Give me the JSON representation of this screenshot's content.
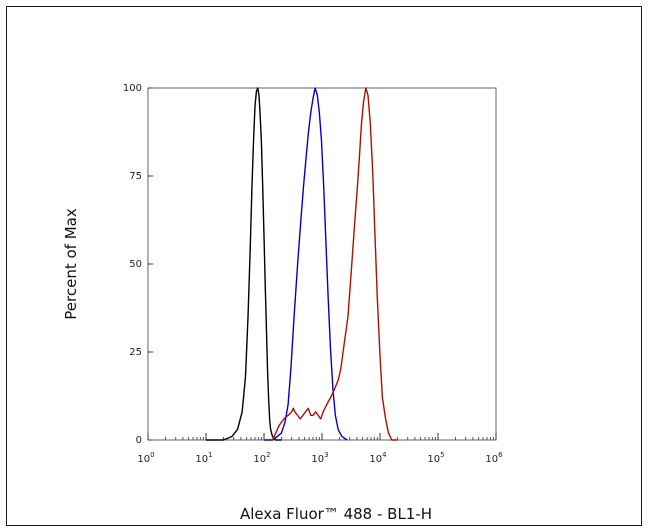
{
  "chart_data": {
    "type": "line",
    "title": "",
    "xlabel": "Alexa Fluor™ 488 - BL1-H",
    "ylabel": "Percent of Max",
    "x_scale": "log",
    "xlim": [
      1,
      1000000
    ],
    "ylim": [
      0,
      100
    ],
    "x_ticks": [
      {
        "value": 1,
        "base": "10",
        "exp": "0"
      },
      {
        "value": 10,
        "base": "10",
        "exp": "1"
      },
      {
        "value": 100,
        "base": "10",
        "exp": "2"
      },
      {
        "value": 1000,
        "base": "10",
        "exp": "3"
      },
      {
        "value": 10000,
        "base": "10",
        "exp": "4"
      },
      {
        "value": 100000,
        "base": "10",
        "exp": "5"
      },
      {
        "value": 1000000,
        "base": "10",
        "exp": "6"
      }
    ],
    "y_ticks": [
      0,
      25,
      50,
      75,
      100
    ],
    "grid": false,
    "legend": "none",
    "series": [
      {
        "color": "#000000",
        "points": [
          [
            10,
            0
          ],
          [
            20,
            0
          ],
          [
            28,
            1
          ],
          [
            35,
            3
          ],
          [
            42,
            8
          ],
          [
            48,
            18
          ],
          [
            53,
            35
          ],
          [
            58,
            55
          ],
          [
            62,
            72
          ],
          [
            66,
            85
          ],
          [
            70,
            95
          ],
          [
            74,
            99
          ],
          [
            78,
            100
          ],
          [
            82,
            98
          ],
          [
            86,
            92
          ],
          [
            90,
            85
          ],
          [
            95,
            72
          ],
          [
            100,
            58
          ],
          [
            105,
            44
          ],
          [
            110,
            32
          ],
          [
            115,
            20
          ],
          [
            120,
            12
          ],
          [
            125,
            6
          ],
          [
            130,
            3
          ],
          [
            140,
            1
          ],
          [
            160,
            0
          ],
          [
            200,
            0
          ]
        ]
      },
      {
        "color": "#0000cc",
        "points": [
          [
            100,
            0
          ],
          [
            140,
            0
          ],
          [
            170,
            1
          ],
          [
            200,
            2
          ],
          [
            230,
            5
          ],
          [
            260,
            10
          ],
          [
            290,
            20
          ],
          [
            330,
            35
          ],
          [
            380,
            50
          ],
          [
            430,
            62
          ],
          [
            480,
            72
          ],
          [
            530,
            80
          ],
          [
            580,
            87
          ],
          [
            640,
            93
          ],
          [
            700,
            97
          ],
          [
            760,
            100
          ],
          [
            830,
            98
          ],
          [
            900,
            93
          ],
          [
            980,
            85
          ],
          [
            1070,
            72
          ],
          [
            1170,
            56
          ],
          [
            1280,
            40
          ],
          [
            1400,
            26
          ],
          [
            1550,
            14
          ],
          [
            1700,
            7
          ],
          [
            1900,
            3
          ],
          [
            2200,
            1
          ],
          [
            2700,
            0
          ]
        ]
      },
      {
        "color": "#aa1100",
        "points": [
          [
            120,
            0
          ],
          [
            140,
            0
          ],
          [
            160,
            2
          ],
          [
            180,
            4
          ],
          [
            220,
            6
          ],
          [
            260,
            7
          ],
          [
            300,
            8
          ],
          [
            320,
            9
          ],
          [
            340,
            8
          ],
          [
            380,
            7
          ],
          [
            420,
            6
          ],
          [
            470,
            7
          ],
          [
            520,
            8
          ],
          [
            580,
            9
          ],
          [
            640,
            7
          ],
          [
            700,
            7
          ],
          [
            780,
            8
          ],
          [
            860,
            7
          ],
          [
            950,
            6
          ],
          [
            1050,
            8
          ],
          [
            1200,
            10
          ],
          [
            1400,
            12
          ],
          [
            1600,
            14
          ],
          [
            1900,
            17
          ],
          [
            2100,
            20
          ],
          [
            2400,
            27
          ],
          [
            2800,
            35
          ],
          [
            3200,
            48
          ],
          [
            3600,
            60
          ],
          [
            4000,
            70
          ],
          [
            4400,
            80
          ],
          [
            4800,
            90
          ],
          [
            5200,
            96
          ],
          [
            5700,
            100
          ],
          [
            6200,
            98
          ],
          [
            6800,
            90
          ],
          [
            7500,
            76
          ],
          [
            8200,
            58
          ],
          [
            9000,
            40
          ],
          [
            10000,
            24
          ],
          [
            11000,
            12
          ],
          [
            12500,
            6
          ],
          [
            14000,
            2
          ],
          [
            16000,
            0
          ],
          [
            20000,
            0
          ]
        ]
      }
    ]
  }
}
